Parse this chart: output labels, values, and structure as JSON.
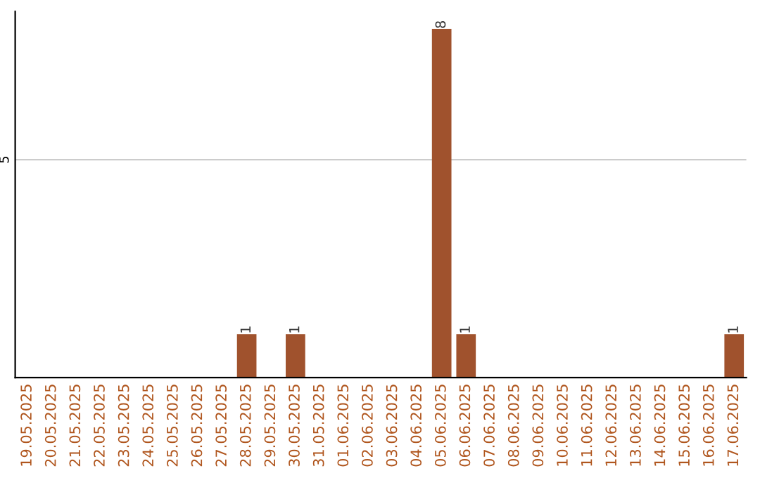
{
  "chart_data": {
    "type": "bar",
    "categories": [
      "19.05.2025",
      "20.05.2025",
      "21.05.2025",
      "22.05.2025",
      "23.05.2025",
      "24.05.2025",
      "25.05.2025",
      "26.05.2025",
      "27.05.2025",
      "28.05.2025",
      "29.05.2025",
      "30.05.2025",
      "31.05.2025",
      "01.06.2025",
      "02.06.2025",
      "03.06.2025",
      "04.06.2025",
      "05.06.2025",
      "06.06.2025",
      "07.06.2025",
      "08.06.2025",
      "09.06.2025",
      "10.06.2025",
      "11.06.2025",
      "12.06.2025",
      "13.06.2025",
      "14.06.2025",
      "15.06.2025",
      "16.06.2025",
      "17.06.2025"
    ],
    "values": [
      0,
      0,
      0,
      0,
      0,
      0,
      0,
      0,
      0,
      1,
      0,
      1,
      0,
      0,
      0,
      0,
      0,
      8,
      1,
      0,
      0,
      0,
      0,
      0,
      0,
      0,
      0,
      0,
      0,
      1
    ],
    "value_labels": [
      null,
      null,
      null,
      null,
      null,
      null,
      null,
      null,
      null,
      "1",
      null,
      "1",
      null,
      null,
      null,
      null,
      null,
      "8",
      "1",
      null,
      null,
      null,
      null,
      null,
      null,
      null,
      null,
      null,
      null,
      "1"
    ],
    "color": "#a0522d",
    "ylim": [
      0,
      8.4
    ],
    "yticks": [
      5
    ],
    "grid": "y"
  }
}
